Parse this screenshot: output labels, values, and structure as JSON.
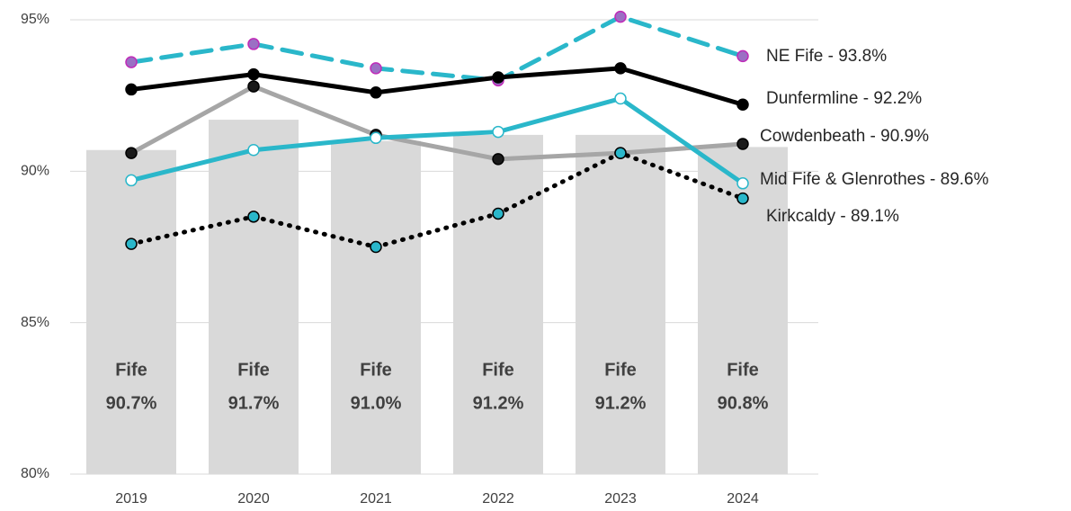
{
  "chart_data": {
    "type": "bar_line",
    "categories": [
      "2019",
      "2020",
      "2021",
      "2022",
      "2023",
      "2024"
    ],
    "ylim": [
      80,
      95
    ],
    "yticks": [
      {
        "value": 80,
        "label": "80%"
      },
      {
        "value": 85,
        "label": "85%"
      },
      {
        "value": 90,
        "label": "90%"
      },
      {
        "value": 95,
        "label": "95%"
      }
    ],
    "grid": true,
    "bars": {
      "name": "Fife",
      "color": "#d9d9d9",
      "values": [
        90.7,
        91.7,
        91.0,
        91.2,
        91.2,
        90.8
      ],
      "value_labels": [
        "90.7%",
        "91.7%",
        "91.0%",
        "91.2%",
        "91.2%",
        "90.8%"
      ]
    },
    "series": [
      {
        "name": "NE Fife - 93.8%",
        "color": "#2ab7ca",
        "linestyle": "dashed",
        "marker_color": "#9b6fc4",
        "marker_edge": "#c02bb8",
        "values": [
          93.6,
          94.2,
          93.4,
          93.0,
          95.1,
          93.8
        ]
      },
      {
        "name": "Dunfermline - 92.2%",
        "color": "#000000",
        "linestyle": "solid",
        "marker_color": "#000000",
        "marker_edge": "#000000",
        "values": [
          92.7,
          93.2,
          92.6,
          93.1,
          93.4,
          92.2
        ]
      },
      {
        "name": "Cowdenbeath - 90.9%",
        "color": "#a6a6a6",
        "linestyle": "solid",
        "marker_color": "#1a1a1a",
        "marker_edge": "#000000",
        "values": [
          90.6,
          92.8,
          91.2,
          90.4,
          90.6,
          90.9
        ]
      },
      {
        "name": "Mid Fife & Glenrothes - 89.6%",
        "color": "#2ab7ca",
        "linestyle": "solid",
        "marker_color": "#ffffff",
        "marker_edge": "#2ab7ca",
        "values": [
          89.7,
          90.7,
          91.1,
          91.3,
          92.4,
          89.6
        ]
      },
      {
        "name": "Kirkcaldy - 89.1%",
        "color": "#000000",
        "linestyle": "dotted",
        "marker_color": "#2ab7ca",
        "marker_edge": "#000000",
        "values": [
          87.6,
          88.5,
          87.5,
          88.6,
          90.6,
          89.1
        ]
      }
    ]
  }
}
